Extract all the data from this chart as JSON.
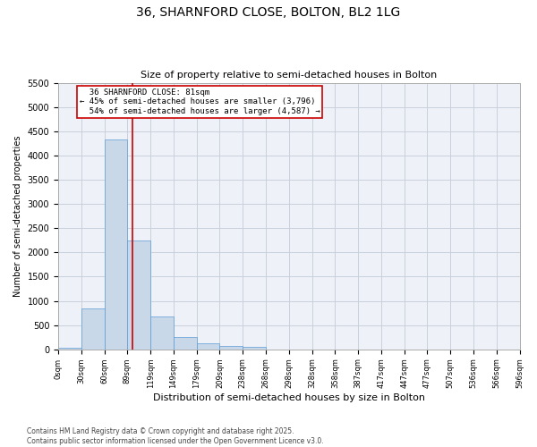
{
  "title_line1": "36, SHARNFORD CLOSE, BOLTON, BL2 1LG",
  "title_line2": "Size of property relative to semi-detached houses in Bolton",
  "xlabel": "Distribution of semi-detached houses by size in Bolton",
  "ylabel": "Number of semi-detached properties",
  "bar_color": "#c8d8e8",
  "bar_edge_color": "#5b9bd5",
  "grid_color": "#c8d0dc",
  "background_color": "#eef2f8",
  "annotation_box_color": "#cc0000",
  "vline_color": "#cc0000",
  "bin_labels": [
    "0sqm",
    "30sqm",
    "60sqm",
    "89sqm",
    "119sqm",
    "149sqm",
    "179sqm",
    "209sqm",
    "238sqm",
    "268sqm",
    "298sqm",
    "328sqm",
    "358sqm",
    "387sqm",
    "417sqm",
    "447sqm",
    "477sqm",
    "507sqm",
    "536sqm",
    "566sqm",
    "596sqm"
  ],
  "bar_values": [
    30,
    850,
    4330,
    2240,
    680,
    250,
    120,
    70,
    50,
    0,
    0,
    0,
    0,
    0,
    0,
    0,
    0,
    0,
    0,
    0
  ],
  "ylim": [
    0,
    5500
  ],
  "yticks": [
    0,
    500,
    1000,
    1500,
    2000,
    2500,
    3000,
    3500,
    4000,
    4500,
    5000,
    5500
  ],
  "property_label": "36 SHARNFORD CLOSE: 81sqm",
  "pct_smaller": 45,
  "count_smaller": 3796,
  "pct_larger": 54,
  "count_larger": 4587,
  "vline_x": 2.72,
  "footer_line1": "Contains HM Land Registry data © Crown copyright and database right 2025.",
  "footer_line2": "Contains public sector information licensed under the Open Government Licence v3.0."
}
